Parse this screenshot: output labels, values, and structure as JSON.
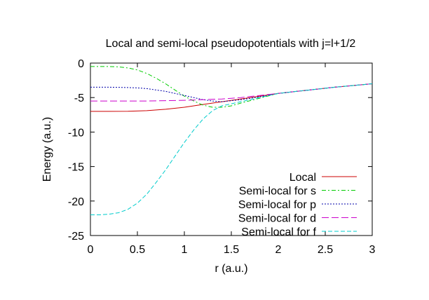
{
  "chart_data": {
    "type": "line",
    "title": "Local and semi-local pseudopotentials with j=l+1/2",
    "xlabel": "r (a.u.)",
    "ylabel": "Energy (a.u.)",
    "xlim": [
      0,
      3
    ],
    "ylim": [
      -25,
      0
    ],
    "xticks": [
      0,
      0.5,
      1,
      1.5,
      2,
      2.5,
      3
    ],
    "xtick_labels": [
      "0",
      "0.5",
      "1",
      "1.5",
      "2",
      "2.5",
      "3"
    ],
    "yticks": [
      0,
      -5,
      -10,
      -15,
      -20,
      -25
    ],
    "ytick_labels": [
      "0",
      "-5",
      "-10",
      "-15",
      "-20",
      "-25"
    ],
    "grid": false,
    "legend_position": "bottom-right",
    "series": [
      {
        "name": "Local",
        "color": "#cc0000",
        "dash": "solid",
        "x": [
          0,
          0.2,
          0.4,
          0.6,
          0.8,
          1.0,
          1.2,
          1.4,
          1.6,
          1.8,
          2.0,
          2.2,
          2.4,
          2.6,
          2.8,
          3.0
        ],
        "y": [
          -7.0,
          -7.0,
          -6.98,
          -6.9,
          -6.7,
          -6.4,
          -6.0,
          -5.6,
          -5.2,
          -4.8,
          -4.4,
          -4.1,
          -3.8,
          -3.5,
          -3.25,
          -3.0
        ]
      },
      {
        "name": "Semi-local for s",
        "color": "#00cc00",
        "dash": "6,3,2,3",
        "x": [
          0,
          0.2,
          0.3,
          0.4,
          0.5,
          0.6,
          0.7,
          0.8,
          0.9,
          1.0,
          1.1,
          1.2,
          1.3,
          1.4,
          1.5,
          1.6,
          1.8,
          2.0,
          2.2,
          2.4,
          2.6,
          2.8,
          3.0
        ],
        "y": [
          -0.5,
          -0.5,
          -0.55,
          -0.7,
          -1.0,
          -1.5,
          -2.2,
          -3.0,
          -3.9,
          -4.8,
          -5.5,
          -6.1,
          -6.4,
          -6.4,
          -6.2,
          -5.8,
          -5.1,
          -4.4,
          -4.1,
          -3.8,
          -3.5,
          -3.25,
          -3.0
        ]
      },
      {
        "name": "Semi-local for p",
        "color": "#0000aa",
        "dash": "2,2",
        "x": [
          0,
          0.2,
          0.4,
          0.5,
          0.6,
          0.7,
          0.8,
          0.9,
          1.0,
          1.1,
          1.2,
          1.3,
          1.4,
          1.6,
          1.8,
          2.0,
          2.2,
          2.4,
          2.6,
          2.8,
          3.0
        ],
        "y": [
          -3.5,
          -3.5,
          -3.55,
          -3.6,
          -3.7,
          -3.9,
          -4.1,
          -4.4,
          -4.7,
          -5.0,
          -5.3,
          -5.5,
          -5.6,
          -5.3,
          -4.9,
          -4.4,
          -4.1,
          -3.8,
          -3.5,
          -3.25,
          -3.0
        ]
      },
      {
        "name": "Semi-local for d",
        "color": "#cc00cc",
        "dash": "10,4",
        "x": [
          0,
          0.2,
          0.4,
          0.6,
          0.8,
          1.0,
          1.2,
          1.4,
          1.6,
          1.8,
          2.0,
          2.2,
          2.4,
          2.6,
          2.8,
          3.0
        ],
        "y": [
          -5.5,
          -5.5,
          -5.5,
          -5.5,
          -5.45,
          -5.4,
          -5.3,
          -5.2,
          -5.0,
          -4.7,
          -4.4,
          -4.1,
          -3.8,
          -3.5,
          -3.25,
          -3.0
        ]
      },
      {
        "name": "Semi-local for f",
        "color": "#00cccc",
        "dash": "6,3",
        "x": [
          0,
          0.1,
          0.2,
          0.3,
          0.4,
          0.5,
          0.6,
          0.7,
          0.8,
          0.9,
          1.0,
          1.1,
          1.2,
          1.3,
          1.4,
          1.5,
          1.6,
          1.8,
          2.0,
          2.2,
          2.4,
          2.6,
          2.8,
          3.0
        ],
        "y": [
          -22.0,
          -22.0,
          -21.9,
          -21.7,
          -21.2,
          -20.3,
          -19.0,
          -17.3,
          -15.5,
          -13.5,
          -11.5,
          -9.7,
          -8.1,
          -6.9,
          -6.2,
          -5.9,
          -5.6,
          -5.0,
          -4.4,
          -4.1,
          -3.8,
          -3.5,
          -3.25,
          -3.0
        ]
      }
    ]
  }
}
